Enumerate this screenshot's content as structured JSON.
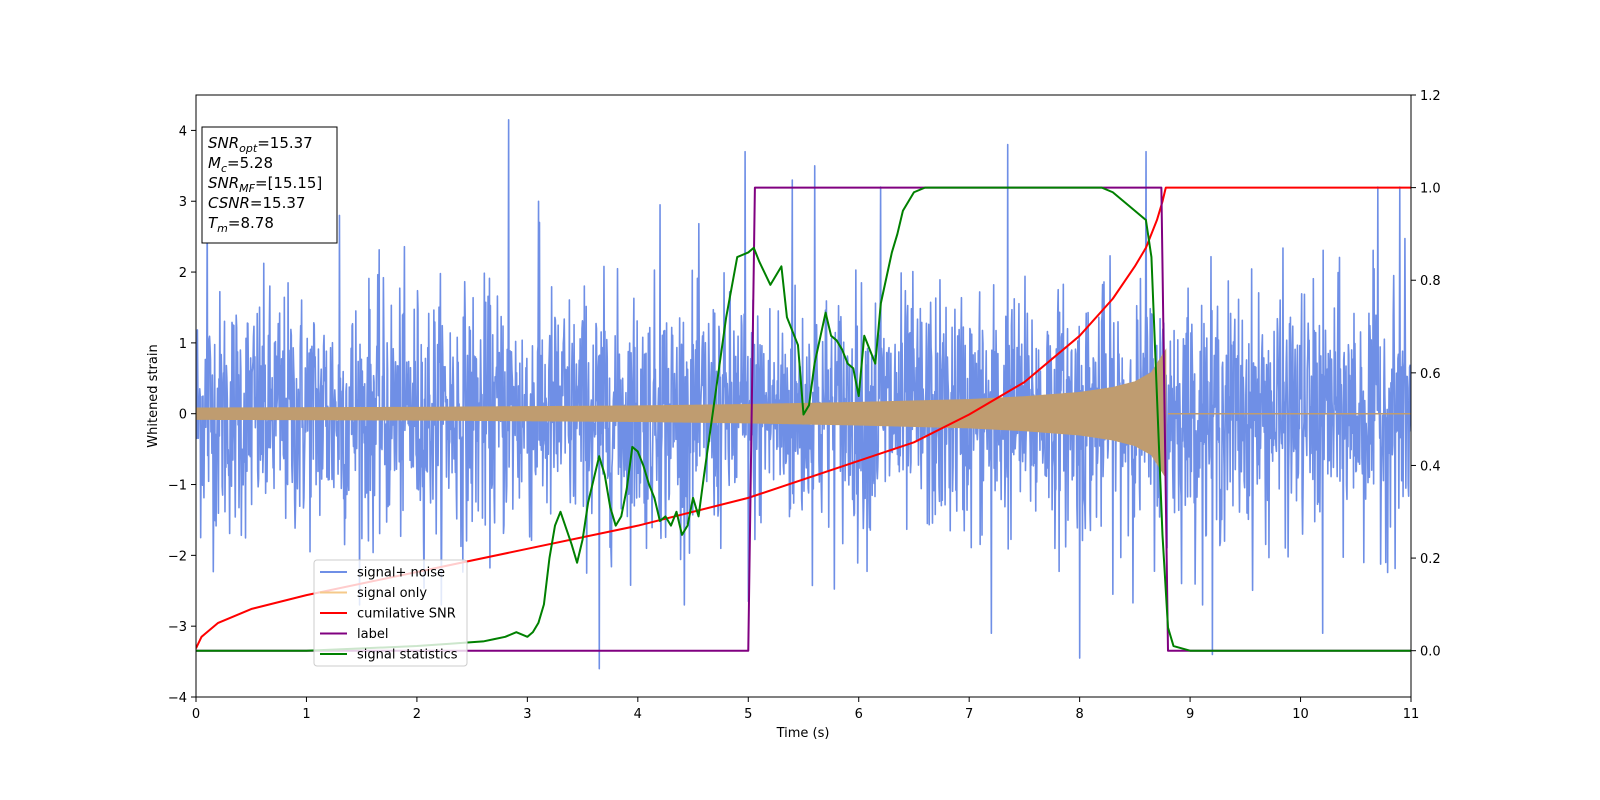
{
  "chart_data": {
    "type": "line",
    "xlabel": "Time (s)",
    "ylabel": "Whitened strain",
    "xlim": [
      0,
      11
    ],
    "ylim_left": [
      -4,
      4.5
    ],
    "ylim_right": [
      -0.1,
      1.2
    ],
    "x_ticks": [
      "0",
      "1",
      "2",
      "3",
      "4",
      "5",
      "6",
      "7",
      "8",
      "9",
      "10",
      "11"
    ],
    "y_left_ticks": [
      "4",
      "3",
      "2",
      "1",
      "0",
      "−1",
      "−2",
      "−3",
      "−4"
    ],
    "y_left_tick_values": [
      4,
      3,
      2,
      1,
      0,
      -1,
      -2,
      -3,
      -4
    ],
    "y_right_ticks": [
      "1.2",
      "1.0",
      "0.8",
      "0.6",
      "0.4",
      "0.2",
      "0.0"
    ],
    "y_right_tick_values": [
      1.2,
      1.0,
      0.8,
      0.6,
      0.4,
      0.2,
      0.0
    ],
    "annotation": {
      "lines": [
        {
          "main": "SNR",
          "sub": "opt",
          "rest": "=15.37"
        },
        {
          "main": "M",
          "sub": "c",
          "rest": "=5.28"
        },
        {
          "main": "SNR",
          "sub": "MF",
          "rest": "=[15.15]"
        },
        {
          "main": "CSNR",
          "sub": "",
          "rest": "=15.37"
        },
        {
          "main": "T",
          "sub": "m",
          "rest": "=8.78"
        }
      ]
    },
    "legend": {
      "position": "lower-left",
      "entries": [
        {
          "label": "signal+ noise",
          "color": "#6f8fe6"
        },
        {
          "label": "signal only",
          "color": "#f5c98a"
        },
        {
          "label": "cumilative SNR",
          "color": "#ff0000"
        },
        {
          "label": "label",
          "color": "#800080"
        },
        {
          "label": "signal statistics",
          "color": "#008000"
        }
      ]
    },
    "series": [
      {
        "name": "signal+ noise",
        "axis": "left",
        "color": "#6f8fe6",
        "noise_sigma": 0.85,
        "peaks": [
          [
            0.1,
            2.9
          ],
          [
            1.3,
            2.8
          ],
          [
            2.83,
            4.15
          ],
          [
            3.1,
            3.0
          ],
          [
            3.65,
            -3.6
          ],
          [
            4.2,
            2.95
          ],
          [
            5.4,
            3.3
          ],
          [
            5.6,
            3.5
          ],
          [
            4.97,
            3.7
          ],
          [
            6.2,
            3.2
          ],
          [
            7.35,
            3.8
          ],
          [
            8.6,
            3.7
          ],
          [
            9.2,
            3.3
          ],
          [
            9.2,
            -3.4
          ],
          [
            10.7,
            3.2
          ],
          [
            10.9,
            3.2
          ],
          [
            8.0,
            -3.45
          ],
          [
            5.0,
            -2.65
          ],
          [
            7.2,
            -3.1
          ],
          [
            10.2,
            -3.1
          ]
        ]
      },
      {
        "name": "signal only",
        "axis": "left",
        "color": "#bf9c70",
        "envelope": [
          [
            0,
            0.08
          ],
          [
            2,
            0.09
          ],
          [
            4,
            0.11
          ],
          [
            5,
            0.13
          ],
          [
            6,
            0.16
          ],
          [
            7,
            0.2
          ],
          [
            7.5,
            0.24
          ],
          [
            8,
            0.3
          ],
          [
            8.3,
            0.37
          ],
          [
            8.5,
            0.45
          ],
          [
            8.65,
            0.58
          ],
          [
            8.78,
            0.9
          ]
        ],
        "t_merge": 8.78
      },
      {
        "name": "cumilative SNR",
        "axis": "right",
        "color": "#ff0000",
        "x": [
          0,
          0.05,
          0.2,
          0.5,
          1,
          2,
          3,
          4,
          5,
          6,
          6.5,
          7,
          7.5,
          8,
          8.3,
          8.5,
          8.6,
          8.7,
          8.75,
          8.78,
          11
        ],
        "values": [
          0.005,
          0.03,
          0.06,
          0.09,
          0.12,
          0.17,
          0.22,
          0.27,
          0.33,
          0.41,
          0.45,
          0.51,
          0.58,
          0.68,
          0.76,
          0.83,
          0.87,
          0.93,
          0.97,
          1.0,
          1.0
        ]
      },
      {
        "name": "label",
        "axis": "right",
        "color": "#800080",
        "x": [
          0,
          5.0,
          5.06,
          8.74,
          8.8,
          11
        ],
        "values": [
          0.0,
          0.0,
          1.0,
          1.0,
          0.0,
          0.0
        ]
      },
      {
        "name": "signal statistics",
        "axis": "right",
        "color": "#008000",
        "x": [
          0,
          1,
          2,
          2.3,
          2.6,
          2.7,
          2.8,
          2.9,
          3.0,
          3.05,
          3.1,
          3.15,
          3.2,
          3.25,
          3.3,
          3.4,
          3.45,
          3.5,
          3.55,
          3.6,
          3.65,
          3.7,
          3.75,
          3.8,
          3.85,
          3.9,
          3.95,
          4.0,
          4.05,
          4.1,
          4.15,
          4.2,
          4.25,
          4.3,
          4.35,
          4.4,
          4.45,
          4.5,
          4.55,
          4.6,
          4.7,
          4.8,
          4.9,
          5.0,
          5.05,
          5.1,
          5.2,
          5.3,
          5.35,
          5.45,
          5.5,
          5.55,
          5.6,
          5.7,
          5.75,
          5.8,
          5.85,
          5.9,
          5.95,
          6.0,
          6.05,
          6.15,
          6.2,
          6.3,
          6.35,
          6.4,
          6.45,
          6.5,
          6.6,
          6.8,
          7.0,
          7.2,
          7.5,
          7.8,
          8.0,
          8.2,
          8.3,
          8.4,
          8.5,
          8.6,
          8.65,
          8.7,
          8.75,
          8.8,
          8.85,
          9.0,
          11
        ],
        "values": [
          0.0,
          0.0,
          0.01,
          0.015,
          0.02,
          0.025,
          0.03,
          0.04,
          0.03,
          0.04,
          0.06,
          0.1,
          0.2,
          0.27,
          0.3,
          0.23,
          0.19,
          0.24,
          0.32,
          0.37,
          0.42,
          0.38,
          0.31,
          0.27,
          0.29,
          0.35,
          0.44,
          0.43,
          0.4,
          0.36,
          0.33,
          0.28,
          0.29,
          0.27,
          0.3,
          0.25,
          0.27,
          0.33,
          0.29,
          0.38,
          0.55,
          0.72,
          0.85,
          0.86,
          0.87,
          0.84,
          0.79,
          0.83,
          0.72,
          0.66,
          0.51,
          0.53,
          0.62,
          0.73,
          0.68,
          0.67,
          0.65,
          0.62,
          0.61,
          0.55,
          0.68,
          0.62,
          0.75,
          0.86,
          0.9,
          0.95,
          0.97,
          0.99,
          1.0,
          1.0,
          1.0,
          1.0,
          1.0,
          1.0,
          1.0,
          1.0,
          0.99,
          0.97,
          0.95,
          0.93,
          0.85,
          0.55,
          0.25,
          0.05,
          0.01,
          0.0,
          0.0
        ]
      }
    ]
  }
}
